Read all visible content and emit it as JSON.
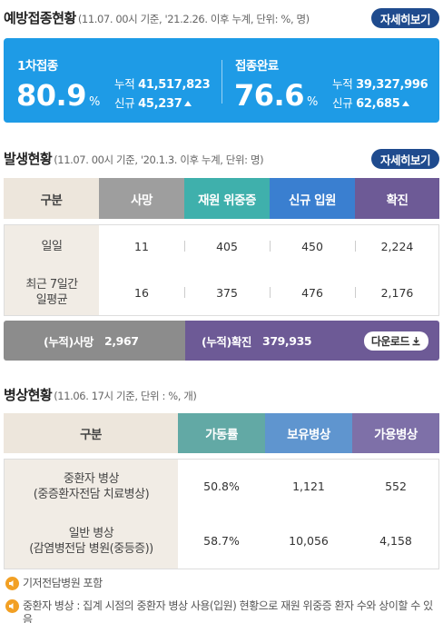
{
  "vaccination": {
    "title": "예방접종현황",
    "note": "(11.07. 00시 기준, '21.2.26. 이후 누계, 단위: %, 명)",
    "more_label": "자세히보기",
    "first": {
      "label": "1차접종",
      "percent": "80.9",
      "unit": "%",
      "cum_label": "누적",
      "cum_value": "41,517,823",
      "new_label": "신규",
      "new_value": "45,237"
    },
    "complete": {
      "label": "접종완료",
      "percent": "76.6",
      "unit": "%",
      "cum_label": "누적",
      "cum_value": "39,327,996",
      "new_label": "신규",
      "new_value": "62,685"
    }
  },
  "occurrence": {
    "title": "발생현황",
    "note": "(11.07. 00시 기준, '20.1.3. 이후 누계, 단위: 명)",
    "more_label": "자세히보기",
    "headers": [
      "구분",
      "사망",
      "재원 위중증",
      "신규 입원",
      "확진"
    ],
    "header_colors": [
      "#ede6dc",
      "#9e9e9e",
      "#3fb0ac",
      "#3a7fd0",
      "#6d5a96"
    ],
    "rows": [
      {
        "label": "일일",
        "values": [
          "11",
          "405",
          "450",
          "2,224"
        ]
      },
      {
        "label": "최근 7일간\n일평균",
        "values": [
          "16",
          "375",
          "476",
          "2,176"
        ]
      }
    ],
    "cumulative": {
      "death_label": "(누적)사망",
      "death_value": "2,967",
      "confirmed_label": "(누적)확진",
      "confirmed_value": "379,935",
      "download_label": "다운로드"
    }
  },
  "beds": {
    "title": "병상현황",
    "note": "(11.06. 17시 기준, 단위 : %, 개)",
    "headers": [
      "구분",
      "가동률",
      "보유병상",
      "가용병상"
    ],
    "header_colors": [
      "#ede6dc",
      "#62a9a5",
      "#5f95cf",
      "#7e70a8"
    ],
    "rows": [
      {
        "label": "중환자 병상\n(중증환자전담 치료병상)",
        "values": [
          "50.8%",
          "1,121",
          "552"
        ]
      },
      {
        "label": "일반 병상\n(감염병전담 병원(중등증))",
        "values": [
          "58.7%",
          "10,056",
          "4,158"
        ]
      }
    ]
  },
  "notes": [
    "기저전담병원 포함",
    "중환자 병상 : 집계 시점의 중환자 병상 사용(입원) 현황으로 재원 위중증 환자 수와 상이할 수 있음"
  ]
}
